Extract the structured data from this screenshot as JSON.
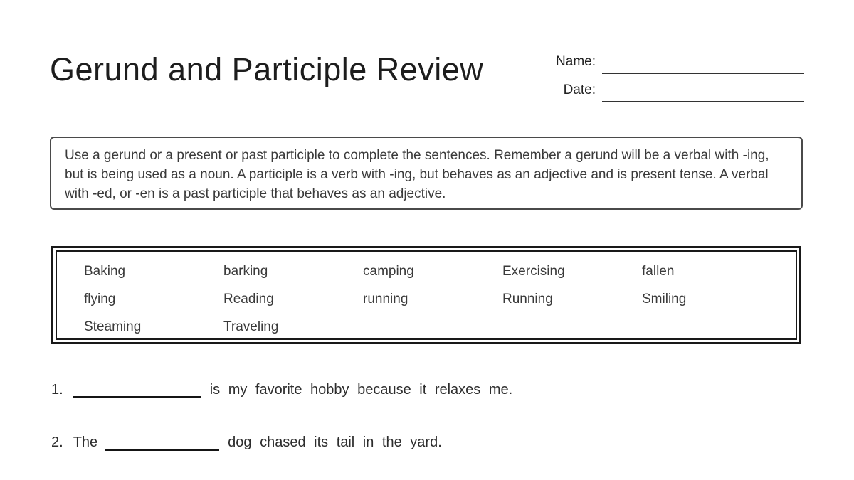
{
  "title": "Gerund and Participle Review",
  "header_fields": {
    "name_label": "Name:",
    "date_label": "Date:"
  },
  "instructions": "Use a gerund or a present or past participle to complete the sentences. Remember a gerund will be a verbal with -ing, but is being used as a noun. A participle is a verb with -ing, but behaves as an adjective and is present tense. A verbal with -ed, or -en is a past participle that behaves as an adjective.",
  "word_bank": [
    "Baking",
    "barking",
    "camping",
    "Exercising",
    "fallen",
    "flying",
    "Reading",
    "running",
    "Running",
    "Smiling",
    "Steaming",
    "Traveling"
  ],
  "questions": [
    {
      "number": "1.",
      "pre": "",
      "post": "is my favorite hobby because it relaxes me."
    },
    {
      "number": "2.",
      "pre": "The",
      "post": "dog chased its tail in the yard."
    }
  ],
  "colors": {
    "ink": "#1d1d1d",
    "body_text": "#3a3a3a",
    "line": "#151515"
  }
}
